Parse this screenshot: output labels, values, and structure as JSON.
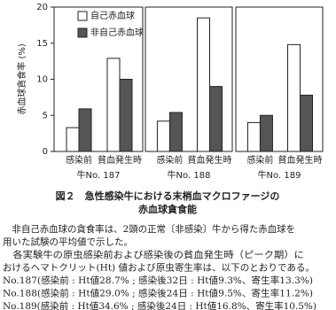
{
  "chart_data": [
    {
      "type": "bar",
      "ylabel": "赤血球貪食率 (%)",
      "ylim": [
        0,
        20
      ],
      "yticks": [
        0,
        5,
        10,
        15,
        20
      ],
      "categories": [
        "感染前",
        "貧血発生時"
      ],
      "xlabel": "牛No. 187",
      "series": [
        {
          "name": "自己赤血球",
          "color": "#ffffff",
          "values": [
            3.3,
            12.9
          ]
        },
        {
          "name": "非自己赤血球",
          "color": "#555555",
          "values": [
            5.9,
            10.0
          ]
        }
      ]
    },
    {
      "type": "bar",
      "ylim": [
        0,
        20
      ],
      "categories": [
        "感染前",
        "貧血発生時"
      ],
      "xlabel": "牛No. 188",
      "series": [
        {
          "color": "#ffffff",
          "values": [
            4.2,
            18.5
          ]
        },
        {
          "color": "#555555",
          "values": [
            5.4,
            9.0
          ]
        }
      ]
    },
    {
      "type": "bar",
      "ylim": [
        0,
        20
      ],
      "categories": [
        "感染前",
        "貧血発生時"
      ],
      "xlabel": "牛No. 189",
      "series": [
        {
          "color": "#ffffff",
          "values": [
            4.0,
            14.8
          ]
        },
        {
          "color": "#555555",
          "values": [
            5.0,
            7.8
          ]
        }
      ]
    }
  ],
  "caption": {
    "lines": [
      "図２　急性感染牛における末梢血マクロファージの",
      "赤血球貪食能"
    ]
  },
  "body": {
    "lines": [
      "　非自己赤血球の貪食率は、2頭の正常〔非感染〕牛から得た赤血球を",
      "用いた試験の平均値で示した。",
      "　各実験牛の原虫感染前および感染後の貧血発生時（ピーク期）に",
      "おけるヘマトクリット(Ht) 値および原虫寄生率は、以下のとおりである。",
      "No.187(感染前 : Ht値28.7% ; 感染後32日 : Ht値9.3%、寄生率13.3%)",
      "No.188(感染前 : Ht値29.0% ; 感染後24日 : Ht値9.5%、寄生率11.2%)",
      "No.189(感染前 : Ht値34.6% ; 感染後24日 : Ht値16.8%、寄生率10.5%)"
    ]
  }
}
